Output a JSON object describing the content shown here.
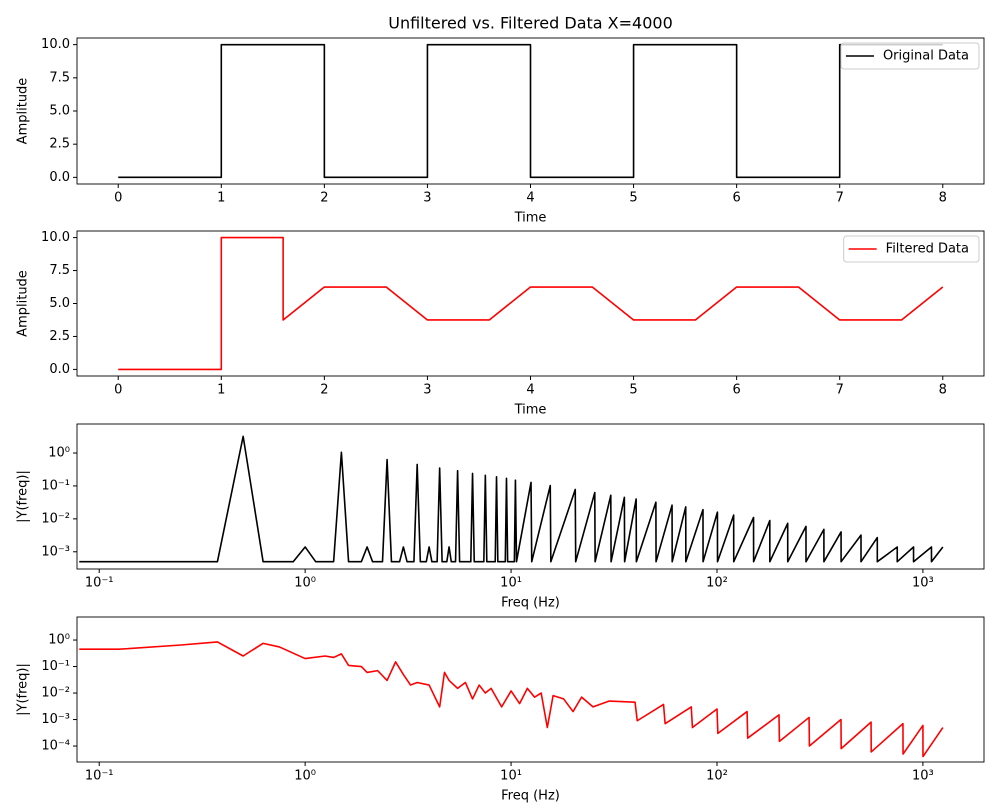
{
  "chart_data": [
    {
      "type": "line",
      "title": "Unfiltered vs. Filtered Data X=4000",
      "xlabel": "Time",
      "ylabel": "Amplitude",
      "xscale": "linear",
      "yscale": "linear",
      "xlim": [
        -0.4,
        8.4
      ],
      "ylim": [
        -0.5,
        10.5
      ],
      "xticks": [
        0,
        1,
        2,
        3,
        4,
        5,
        6,
        7,
        8
      ],
      "yticks": [
        {
          "value": 0,
          "label": "0.0"
        },
        {
          "value": 2.5,
          "label": "2.5"
        },
        {
          "value": 5,
          "label": "5.0"
        },
        {
          "value": 7.5,
          "label": "7.5"
        },
        {
          "value": 10,
          "label": "10.0"
        }
      ],
      "legend": "upper right",
      "x": [
        0,
        1,
        1,
        2,
        2,
        3,
        3,
        4,
        4,
        5,
        5,
        6,
        6,
        7,
        7,
        8
      ],
      "series": [
        {
          "name": "Original Data",
          "color": "#000000",
          "values": [
            0,
            0,
            10,
            10,
            0,
            0,
            10,
            10,
            0,
            0,
            10,
            10,
            0,
            0,
            10,
            10
          ]
        }
      ]
    },
    {
      "type": "line",
      "xlabel": "Time",
      "ylabel": "Amplitude",
      "xscale": "linear",
      "yscale": "linear",
      "xlim": [
        -0.4,
        8.4
      ],
      "ylim": [
        -0.5,
        10.5
      ],
      "xticks": [
        0,
        1,
        2,
        3,
        4,
        5,
        6,
        7,
        8
      ],
      "yticks": [
        {
          "value": 0,
          "label": "0.0"
        },
        {
          "value": 2.5,
          "label": "2.5"
        },
        {
          "value": 5,
          "label": "5.0"
        },
        {
          "value": 7.5,
          "label": "7.5"
        },
        {
          "value": 10,
          "label": "10.0"
        }
      ],
      "legend": "upper right",
      "x": [
        0,
        1,
        1,
        1.6,
        1.6,
        2,
        2.6,
        3,
        3.6,
        4,
        4.6,
        5,
        5.6,
        6,
        6.6,
        7,
        7.6,
        8
      ],
      "series": [
        {
          "name": "Filtered Data",
          "color": "#ff0000",
          "values": [
            0,
            0,
            10,
            10,
            3.75,
            6.25,
            6.25,
            3.75,
            3.75,
            6.25,
            6.25,
            3.75,
            3.75,
            6.25,
            6.25,
            3.75,
            3.75,
            6.25
          ]
        }
      ]
    },
    {
      "type": "line",
      "xlabel": "Freq (Hz)",
      "ylabel": "|Y(freq)|",
      "xscale": "log",
      "yscale": "log",
      "xlim": [
        0.078,
        1980
      ],
      "ylim": [
        0.0003,
        7.6
      ],
      "xticks": [
        {
          "value": 0.1,
          "label": "10⁻¹"
        },
        {
          "value": 1,
          "label": "10⁰"
        },
        {
          "value": 10,
          "label": "10¹"
        },
        {
          "value": 100,
          "label": "10²"
        },
        {
          "value": 1000,
          "label": "10³"
        }
      ],
      "yticks": [
        {
          "value": 0.001,
          "label": "10⁻³"
        },
        {
          "value": 0.01,
          "label": "10⁻²"
        },
        {
          "value": 0.1,
          "label": "10⁻¹"
        },
        {
          "value": 1,
          "label": "10⁰"
        }
      ],
      "x": [
        0.08,
        0.375,
        0.5,
        0.625,
        0.875,
        1.0,
        1.125,
        1.375,
        1.5,
        1.625,
        1.875,
        2.0,
        2.125,
        2.375,
        2.5,
        2.625,
        2.875,
        3.0,
        3.125,
        3.375,
        3.5,
        3.625,
        3.875,
        4.0,
        4.125,
        4.375,
        4.5,
        4.625,
        4.875,
        5.0,
        5.125,
        5.375,
        5.5,
        5.625,
        6.375,
        6.5,
        6.625,
        7.375,
        7.5,
        7.625,
        8.375,
        8.5,
        8.625,
        9.375,
        9.5,
        9.625,
        10.375,
        10.5,
        10.625,
        12.5,
        12.6,
        15.5,
        15.6,
        20.5,
        20.6,
        25.5,
        25.6,
        30.5,
        30.6,
        35.5,
        35.6,
        40.5,
        40.6,
        50.5,
        50.6,
        60.5,
        60.6,
        70.5,
        70.6,
        85.5,
        85.6,
        100.5,
        100.6,
        120.5,
        120.6,
        150.5,
        150.6,
        180.5,
        180.6,
        220.5,
        220.6,
        270.5,
        270.6,
        330.5,
        330.6,
        400.5,
        400.6,
        500.5,
        500.6,
        600.5,
        600.6,
        750.5,
        750.6,
        900.5,
        900.6,
        1100.5,
        1100.6,
        1249.9
      ],
      "series": [
        {
          "color": "#000000",
          "values": [
            0.0005,
            0.0005,
            3.2,
            0.0005,
            0.0005,
            0.0014,
            0.0005,
            0.0005,
            1.05,
            0.0005,
            0.0005,
            0.0014,
            0.0005,
            0.0005,
            0.63,
            0.0005,
            0.0005,
            0.0014,
            0.0005,
            0.0005,
            0.45,
            0.0005,
            0.0005,
            0.0014,
            0.0005,
            0.0005,
            0.35,
            0.0005,
            0.0005,
            0.0014,
            0.0005,
            0.0005,
            0.29,
            0.0005,
            0.0005,
            0.24,
            0.0005,
            0.0005,
            0.21,
            0.0005,
            0.0005,
            0.19,
            0.0005,
            0.0005,
            0.17,
            0.0005,
            0.0005,
            0.15,
            0.0005,
            0.128,
            0.0005,
            0.103,
            0.0005,
            0.078,
            0.0005,
            0.063,
            0.0005,
            0.052,
            0.0005,
            0.045,
            0.0005,
            0.04,
            0.0005,
            0.032,
            0.0005,
            0.026,
            0.0005,
            0.023,
            0.0005,
            0.019,
            0.0005,
            0.016,
            0.0005,
            0.013,
            0.0005,
            0.011,
            0.0005,
            0.0089,
            0.0005,
            0.0073,
            0.0005,
            0.0059,
            0.0005,
            0.0048,
            0.0005,
            0.004,
            0.0005,
            0.0032,
            0.0005,
            0.0027,
            0.0005,
            0.0014,
            0.0005,
            0.0014,
            0.0005,
            0.0014,
            0.0005,
            0.0014
          ]
        }
      ]
    },
    {
      "type": "line",
      "xlabel": "Freq (Hz)",
      "ylabel": "|Y(freq)|",
      "xscale": "log",
      "yscale": "log",
      "xlim": [
        0.078,
        1980
      ],
      "ylim": [
        2.5e-05,
        7.4
      ],
      "xticks": [
        {
          "value": 0.1,
          "label": "10⁻¹"
        },
        {
          "value": 1,
          "label": "10⁰"
        },
        {
          "value": 10,
          "label": "10¹"
        },
        {
          "value": 100,
          "label": "10²"
        },
        {
          "value": 1000,
          "label": "10³"
        }
      ],
      "yticks": [
        {
          "value": 0.0001,
          "label": "10⁻⁴"
        },
        {
          "value": 0.001,
          "label": "10⁻³"
        },
        {
          "value": 0.01,
          "label": "10⁻²"
        },
        {
          "value": 0.1,
          "label": "10⁻¹"
        },
        {
          "value": 1,
          "label": "10⁰"
        }
      ],
      "x": [
        0.08,
        0.125,
        0.25,
        0.375,
        0.5,
        0.625,
        0.75,
        1.0,
        1.25,
        1.375,
        1.5,
        1.625,
        1.875,
        2.0,
        2.25,
        2.5,
        2.75,
        3.0,
        3.25,
        3.5,
        4.0,
        4.5,
        4.75,
        5.0,
        5.5,
        6.0,
        6.5,
        7.0,
        7.5,
        8.0,
        9,
        10,
        11,
        12,
        13,
        14,
        15,
        16,
        18,
        20,
        22,
        25,
        30,
        40,
        41,
        55,
        56,
        75,
        76,
        100,
        101,
        140,
        141,
        200,
        201,
        280,
        281,
        400,
        401,
        560,
        561,
        800,
        801,
        1000,
        1001,
        1249.9
      ],
      "series": [
        {
          "color": "#ff0000",
          "values": [
            0.45,
            0.45,
            0.65,
            0.85,
            0.25,
            0.75,
            0.55,
            0.2,
            0.25,
            0.22,
            0.3,
            0.11,
            0.1,
            0.06,
            0.07,
            0.03,
            0.15,
            0.05,
            0.02,
            0.025,
            0.02,
            0.003,
            0.06,
            0.03,
            0.015,
            0.025,
            0.006,
            0.02,
            0.01,
            0.015,
            0.003,
            0.012,
            0.004,
            0.015,
            0.007,
            0.01,
            0.0005,
            0.008,
            0.006,
            0.002,
            0.007,
            0.003,
            0.005,
            0.0045,
            0.0009,
            0.0037,
            0.0007,
            0.003,
            0.0005,
            0.0025,
            0.0003,
            0.002,
            0.0002,
            0.0015,
            0.00015,
            0.0012,
            0.0001,
            0.001,
            8e-05,
            0.0008,
            6e-05,
            0.0007,
            5e-05,
            0.0006,
            4e-05,
            0.0005
          ]
        }
      ]
    }
  ]
}
